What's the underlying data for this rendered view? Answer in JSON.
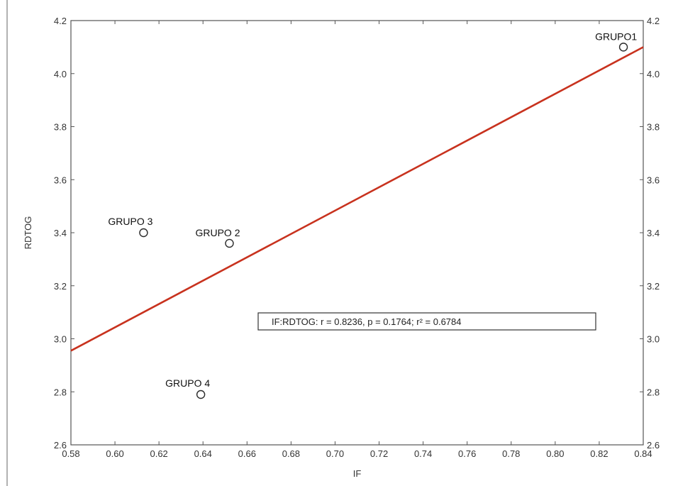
{
  "chart_data": {
    "type": "scatter",
    "xlabel": "IF",
    "ylabel": "RDTOG",
    "xlim": [
      0.58,
      0.84
    ],
    "ylim": [
      2.6,
      4.2
    ],
    "x_ticks": [
      "0.58",
      "0.60",
      "0.62",
      "0.64",
      "0.66",
      "0.68",
      "0.70",
      "0.72",
      "0.74",
      "0.76",
      "0.78",
      "0.80",
      "0.82",
      "0.84"
    ],
    "y_ticks": [
      "2.6",
      "2.8",
      "3.0",
      "3.2",
      "3.4",
      "3.6",
      "3.8",
      "4.0",
      "4.2"
    ],
    "points": [
      {
        "label": "GRUPO1",
        "x": 0.831,
        "y": 4.1
      },
      {
        "label": "GRUPO 2",
        "x": 0.652,
        "y": 3.36
      },
      {
        "label": "GRUPO 3",
        "x": 0.613,
        "y": 3.4
      },
      {
        "label": "GRUPO 4",
        "x": 0.639,
        "y": 2.79
      }
    ],
    "regression_line": {
      "x": [
        0.58,
        0.84
      ],
      "y": [
        2.955,
        4.1
      ],
      "color": "#c8321e"
    },
    "annotation": "IF:RDTOG:   r = 0.8236, p = 0.1764; r² = 0.6784",
    "grid": false,
    "point_color": "#2a2a2a"
  }
}
